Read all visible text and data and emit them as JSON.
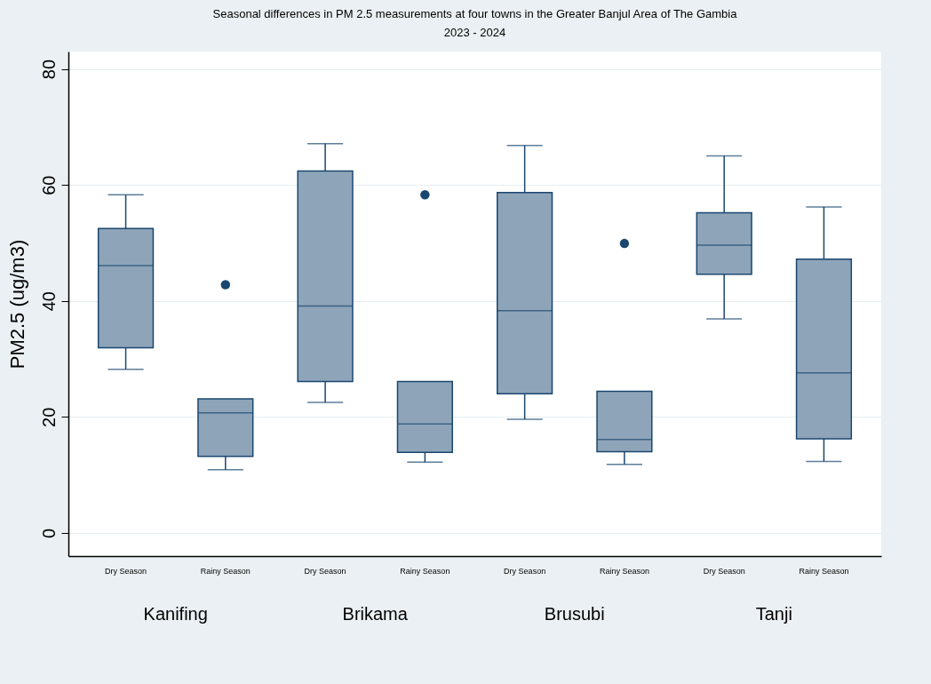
{
  "chart_data": {
    "type": "box",
    "title": "Seasonal differences in PM 2.5 measurements at four towns in the Greater Banjul Area of The Gambia",
    "subtitle": "2023 - 2024",
    "ylabel": "PM2.5 (ug/m3)",
    "categories": [
      "Dry Season",
      "Rainy Season",
      "Dry Season",
      "Rainy Season",
      "Dry Season",
      "Rainy Season",
      "Dry Season",
      "Rainy Season"
    ],
    "annotations": [
      "Kanifing",
      "Brikama",
      "Brusubi",
      "Tanji"
    ],
    "series": [
      {
        "color": "#8ea4b9",
        "boxes": [
          {
            "low": 28.2,
            "q1": 31.9,
            "median": 46.1,
            "q3": 52.5,
            "high": 58.3
          },
          {
            "low": 10.9,
            "q1": 13.2,
            "median": 20.7,
            "q3": 23.1,
            "high": 23.1,
            "outliers": [
              42.8
            ]
          },
          {
            "low": 22.5,
            "q1": 26.1,
            "median": 39.1,
            "q3": 62.4,
            "high": 67.1
          },
          {
            "low": 12.2,
            "q1": 13.9,
            "median": 18.8,
            "q3": 26.1,
            "high": 26.1,
            "outliers": [
              58.3
            ]
          },
          {
            "low": 19.6,
            "q1": 24.0,
            "median": 38.3,
            "q3": 58.7,
            "high": 66.8
          },
          {
            "low": 11.8,
            "q1": 14.0,
            "median": 16.1,
            "q3": 24.4,
            "high": 24.4,
            "outliers": [
              49.9
            ]
          },
          {
            "low": 36.9,
            "q1": 44.6,
            "median": 49.6,
            "q3": 55.2,
            "high": 65.0
          },
          {
            "low": 12.3,
            "q1": 16.2,
            "median": 27.6,
            "q3": 47.2,
            "high": 56.2
          }
        ]
      }
    ],
    "ylim": [
      -4,
      83
    ],
    "yticks": [
      0,
      20,
      40,
      60,
      80
    ],
    "grid": "y"
  }
}
